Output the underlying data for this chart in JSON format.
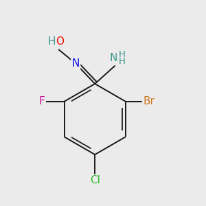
{
  "background_color": "#ebebeb",
  "bond_color": "#1a1a1a",
  "atom_colors": {
    "H": "#3d9990",
    "O": "#ee1100",
    "N": "#1111ee",
    "F": "#cc1199",
    "Br": "#cc7722",
    "Cl": "#33bb33",
    "C": "#1a1a1a"
  },
  "figsize": [
    3.0,
    3.0
  ],
  "dpi": 100,
  "font_size": 11
}
